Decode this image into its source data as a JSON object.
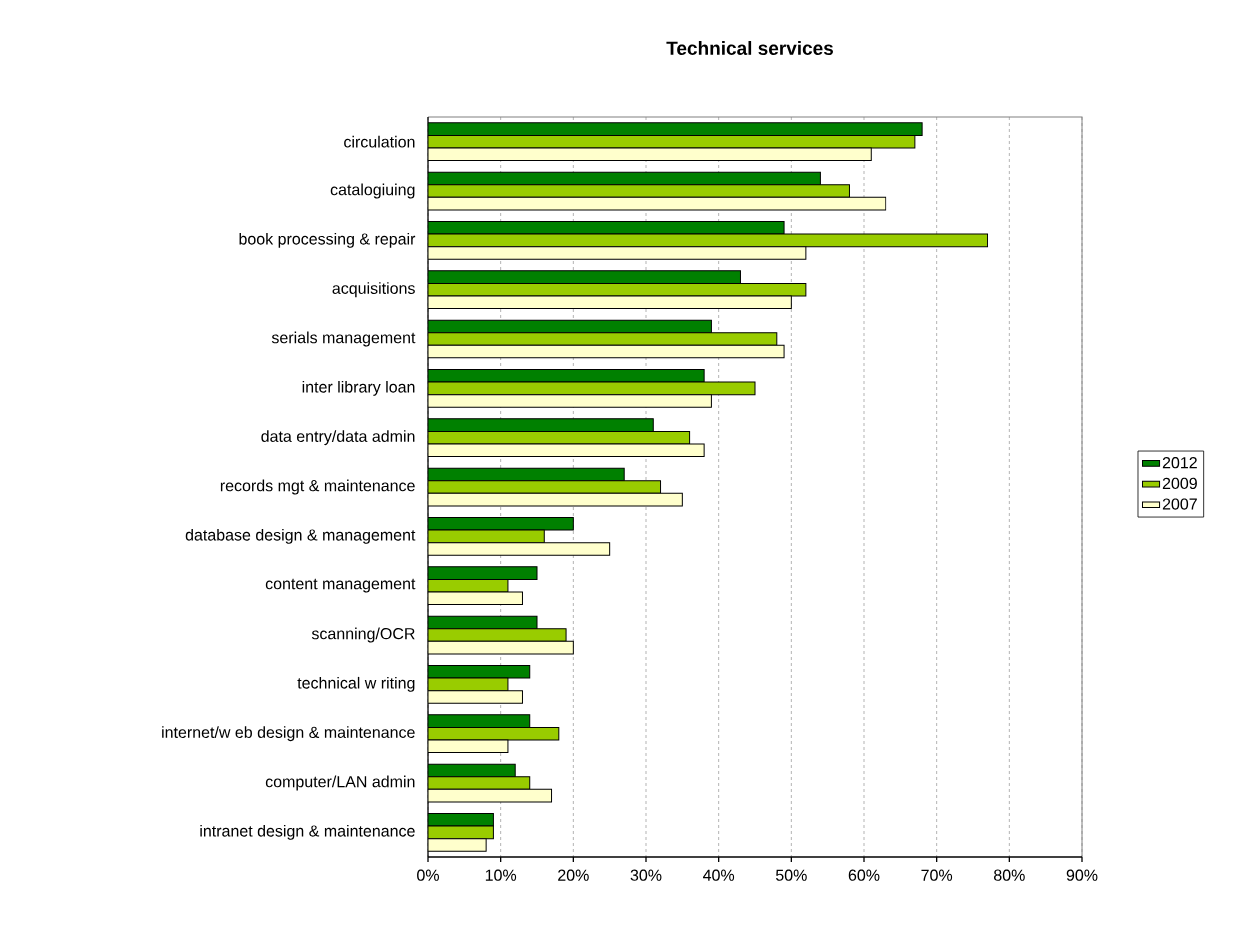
{
  "chart_data": {
    "type": "bar",
    "orientation": "horizontal",
    "title": "Technical services",
    "categories": [
      "circulation",
      "catalogiuing",
      "book processing & repair",
      "acquisitions",
      "serials management",
      "inter library loan",
      "data entry/data admin",
      "records mgt & maintenance",
      "database design & management",
      "content management",
      "scanning/OCR",
      "technical w riting",
      "internet/w eb design & maintenance",
      "computer/LAN admin",
      "intranet design & maintenance"
    ],
    "series": [
      {
        "name": "2012",
        "color": "#008000",
        "values": [
          68,
          54,
          49,
          43,
          39,
          38,
          31,
          27,
          20,
          15,
          15,
          14,
          14,
          12,
          9
        ]
      },
      {
        "name": "2009",
        "color": "#99cc00",
        "values": [
          67,
          58,
          77,
          52,
          48,
          45,
          36,
          32,
          16,
          11,
          19,
          11,
          18,
          14,
          9
        ]
      },
      {
        "name": "2007",
        "color": "#ffffcc",
        "values": [
          61,
          63,
          52,
          50,
          49,
          39,
          38,
          35,
          25,
          13,
          20,
          13,
          11,
          17,
          8
        ]
      }
    ],
    "xlim": [
      0,
      90
    ],
    "xticks": [
      {
        "value": 0,
        "label": "0%"
      },
      {
        "value": 10,
        "label": "10%"
      },
      {
        "value": 20,
        "label": "20%"
      },
      {
        "value": 30,
        "label": "30%"
      },
      {
        "value": 40,
        "label": "40%"
      },
      {
        "value": 50,
        "label": "50%"
      },
      {
        "value": 60,
        "label": "60%"
      },
      {
        "value": 70,
        "label": "70%"
      },
      {
        "value": 80,
        "label": "80%"
      },
      {
        "value": 90,
        "label": "90%"
      }
    ],
    "grid": "x",
    "legend": "right"
  }
}
